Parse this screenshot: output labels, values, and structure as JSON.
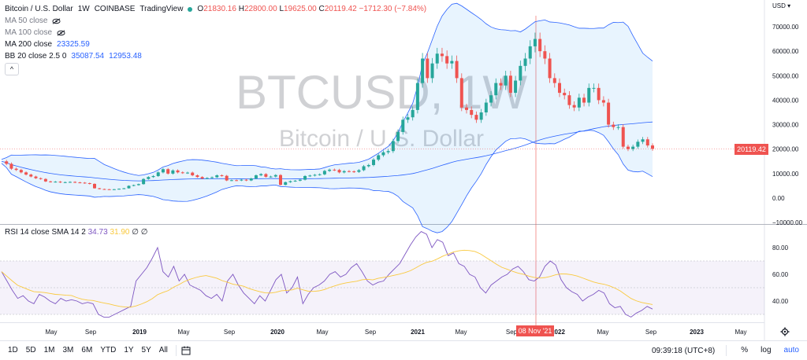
{
  "legend": {
    "symbol": "Bitcoin / U.S. Dollar",
    "interval": "1W",
    "exchange": "COINBASE",
    "source": "TradingView",
    "ohlc": {
      "o_label": "O",
      "o": "21830.16",
      "h_label": "H",
      "h": "22800.00",
      "l_label": "L",
      "l": "19625.00",
      "c_label": "C",
      "c": "20119.42",
      "change": "−1712.30 (−7.84%)"
    },
    "ma50": "MA 50 close",
    "ma100": "MA 100 close",
    "ma200": "MA 200 close",
    "ma200_value": "23325.59",
    "bb": "BB 20 close 2.5 0",
    "bb_upper": "35087.54",
    "bb_lower": "12953.48",
    "collapse_icon": "^"
  },
  "watermark": {
    "ticker": "BTCUSD, 1W",
    "name": "Bitcoin / U.S. Dollar"
  },
  "price_axis": {
    "currency": "USD",
    "ticks": [
      "70000.00",
      "60000.00",
      "50000.00",
      "40000.00",
      "30000.00",
      "20000.00",
      "10000.00",
      "0.00",
      "−10000.00"
    ],
    "last_price": "20119.42"
  },
  "rsi": {
    "label": "RSI 14 close SMA 14 2",
    "value": "34.73",
    "sma_value": "31.90",
    "empty": "∅ ∅",
    "ticks": [
      "80.00",
      "60.00",
      "40.00"
    ]
  },
  "time_axis": {
    "labels": [
      "May",
      "Sep",
      "2019",
      "May",
      "Sep",
      "2020",
      "May",
      "Sep",
      "2021",
      "May",
      "Sep",
      "2022",
      "May",
      "Sep",
      "2023",
      "May"
    ],
    "crosshair_date": "08 Nov '21"
  },
  "toolbar": {
    "ranges": [
      "1D",
      "5D",
      "1M",
      "3M",
      "6M",
      "YTD",
      "1Y",
      "5Y",
      "All"
    ],
    "time": "09:39:18 (UTC+8)",
    "percent": "%",
    "log": "log",
    "auto": "auto"
  },
  "colors": {
    "up": "#26a69a",
    "down": "#ef5350",
    "bb_band": "#2962ff",
    "ma200": "#2962ff",
    "rsi_line": "#7e57c2",
    "rsi_sma": "#f9c93e",
    "crosshair": "#ef5350"
  },
  "chart_data": {
    "type": "candlestick",
    "weekly_close_approx": [
      15000,
      14000,
      12000,
      11500,
      10500,
      9600,
      8800,
      8100,
      7800,
      6800,
      6600,
      6700,
      6400,
      6500,
      6600,
      6400,
      6300,
      6100,
      5800,
      4000,
      3700,
      3600,
      3500,
      3600,
      3800,
      4000,
      5000,
      5300,
      5700,
      7800,
      8600,
      9000,
      10500,
      11800,
      10000,
      11300,
      10500,
      10300,
      10400,
      9300,
      8600,
      8000,
      8200,
      8500,
      9300,
      9100,
      7200,
      7300,
      7200,
      7500,
      7200,
      8000,
      9300,
      9800,
      8700,
      8800,
      9400,
      5400,
      6500,
      6900,
      7100,
      7500,
      9000,
      9200,
      9500,
      9700,
      11100,
      11600,
      11500,
      10500,
      11000,
      10900,
      10700,
      11400,
      13000,
      13500,
      15700,
      17500,
      18700,
      19200,
      23300,
      27000,
      32000,
      33000,
      36000,
      47000,
      57000,
      49000,
      55000,
      59000,
      58000,
      55000,
      56000,
      49000,
      37000,
      36000,
      34000,
      32000,
      35000,
      39000,
      42000,
      47000,
      46000,
      50000,
      43000,
      48000,
      54000,
      57000,
      62000,
      65000,
      60000,
      57000,
      49000,
      47000,
      43000,
      42000,
      38000,
      37000,
      41000,
      39000,
      45000,
      45000,
      40000,
      39000,
      30000,
      29000,
      29000,
      21000,
      20000,
      21000,
      23000,
      24000,
      21500,
      20119
    ],
    "ma200_note": "MA 200 close 23325.59",
    "bb_upper": 35087.54,
    "bb_lower": 12953.48,
    "y_range": [
      -10000,
      75000
    ],
    "rsi_values": [
      62,
      55,
      48,
      42,
      44,
      40,
      38,
      45,
      43,
      40,
      38,
      42,
      40,
      41,
      40,
      38,
      39,
      38,
      30,
      28,
      28,
      30,
      32,
      34,
      36,
      55,
      60,
      65,
      72,
      80,
      62,
      58,
      66,
      55,
      60,
      52,
      50,
      48,
      44,
      42,
      45,
      40,
      55,
      60,
      52,
      46,
      42,
      38,
      44,
      40,
      48,
      56,
      60,
      46,
      50,
      58,
      38,
      45,
      50,
      52,
      55,
      60,
      62,
      58,
      60,
      65,
      68,
      62,
      55,
      52,
      54,
      55,
      60,
      64,
      68,
      75,
      82,
      88,
      92,
      90,
      80,
      86,
      84,
      74,
      76,
      68,
      66,
      60,
      58,
      50,
      46,
      52,
      55,
      58,
      60,
      64,
      66,
      62,
      56,
      55,
      58,
      66,
      70,
      67,
      56,
      50,
      47,
      45,
      40,
      43,
      45,
      48,
      46,
      38,
      35,
      36,
      30,
      28,
      31,
      33,
      36,
      34
    ],
    "rsi_range": [
      25,
      100
    ]
  }
}
